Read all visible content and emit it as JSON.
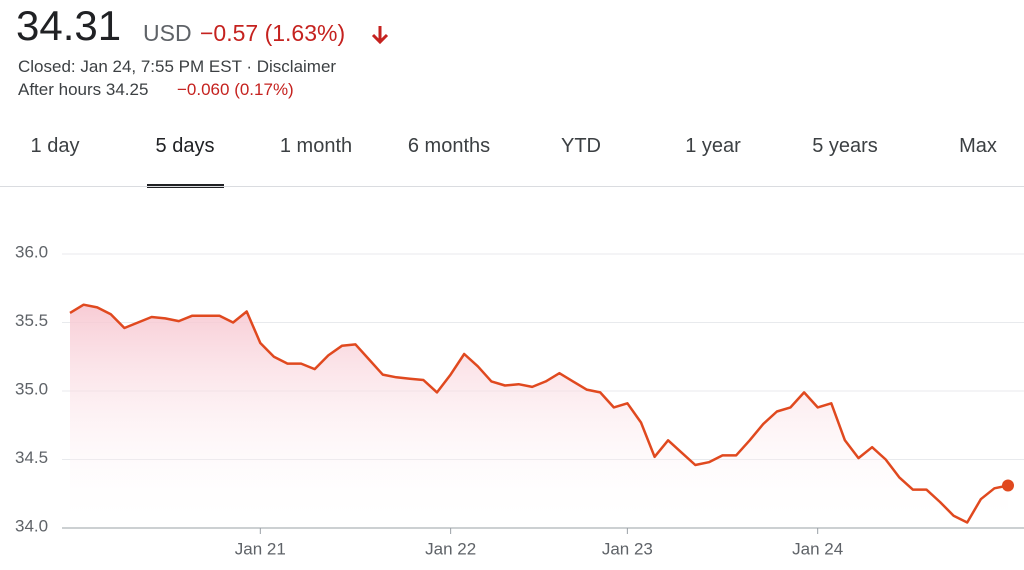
{
  "header": {
    "price": "34.31",
    "currency": "USD",
    "change": "−0.57 (1.63%)",
    "closed": "Closed: Jan 24, 7:55 PM EST · Disclaimer",
    "after_hours": "After hours 34.25",
    "after_hours_change": "−0.060 (0.17%)"
  },
  "tabs": [
    "1 day",
    "5 days",
    "1 month",
    "6 months",
    "YTD",
    "1 year",
    "5 years",
    "Max"
  ],
  "chart_data": {
    "type": "line",
    "color": "#e0491f",
    "grid": true,
    "categories": [
      null,
      null,
      null,
      null,
      null,
      null,
      null,
      null,
      null,
      null,
      null,
      null,
      null,
      null,
      "Jan 21",
      null,
      null,
      null,
      null,
      null,
      null,
      null,
      null,
      null,
      null,
      null,
      null,
      null,
      "Jan 22",
      null,
      null,
      null,
      null,
      null,
      null,
      null,
      null,
      null,
      null,
      null,
      null,
      "Jan 23",
      null,
      null,
      null,
      null,
      null,
      null,
      null,
      null,
      null,
      null,
      null,
      null,
      null,
      "Jan 24",
      null,
      null,
      null,
      null,
      null,
      null,
      null,
      null,
      null,
      null,
      null,
      null,
      null,
      null
    ],
    "values": [
      35.57,
      35.63,
      35.61,
      35.56,
      35.46,
      35.5,
      35.54,
      35.53,
      35.51,
      35.55,
      35.55,
      35.55,
      35.5,
      35.58,
      35.35,
      35.25,
      35.2,
      35.2,
      35.16,
      35.26,
      35.33,
      35.34,
      35.23,
      35.12,
      35.1,
      35.09,
      35.08,
      34.99,
      35.12,
      35.27,
      35.18,
      35.07,
      35.04,
      35.05,
      35.03,
      35.07,
      35.13,
      35.07,
      35.01,
      34.99,
      34.88,
      34.91,
      34.77,
      34.52,
      34.64,
      34.55,
      34.46,
      34.48,
      34.53,
      34.53,
      34.64,
      34.76,
      34.85,
      34.88,
      34.99,
      34.88,
      34.91,
      34.64,
      34.51,
      34.59,
      34.5,
      34.37,
      34.28,
      34.28,
      34.19,
      34.09,
      34.04,
      34.21,
      34.29,
      34.31
    ],
    "ylim": [
      34,
      36
    ],
    "yticks": [
      {
        "value": 34,
        "label": "34.0"
      },
      {
        "value": 34.5,
        "label": "34.5"
      },
      {
        "value": 35,
        "label": "35.0"
      },
      {
        "value": 35.5,
        "label": "35.5"
      },
      {
        "value": 36,
        "label": "36.0"
      }
    ]
  }
}
